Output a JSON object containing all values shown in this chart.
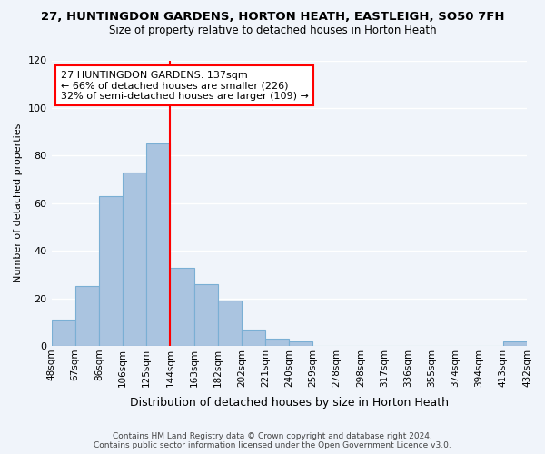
{
  "title": "27, HUNTINGDON GARDENS, HORTON HEATH, EASTLEIGH, SO50 7FH",
  "subtitle": "Size of property relative to detached houses in Horton Heath",
  "xlabel": "Distribution of detached houses by size in Horton Heath",
  "ylabel": "Number of detached properties",
  "bar_values": [
    11,
    25,
    63,
    73,
    85,
    33,
    26,
    19,
    7,
    3,
    2,
    0,
    0,
    0,
    0,
    0,
    0,
    0,
    0,
    2
  ],
  "bin_labels": [
    "48sqm",
    "67sqm",
    "86sqm",
    "106sqm",
    "125sqm",
    "144sqm",
    "163sqm",
    "182sqm",
    "202sqm",
    "221sqm",
    "240sqm",
    "259sqm",
    "278sqm",
    "298sqm",
    "317sqm",
    "336sqm",
    "355sqm",
    "374sqm",
    "394sqm",
    "413sqm",
    "432sqm"
  ],
  "bar_color": "#aac4e0",
  "bar_edge_color": "#7aafd4",
  "vline_bin_index": 5,
  "vline_color": "red",
  "annotation_text": "27 HUNTINGDON GARDENS: 137sqm\n← 66% of detached houses are smaller (226)\n32% of semi-detached houses are larger (109) →",
  "annotation_box_color": "white",
  "annotation_box_edge": "red",
  "ylim": [
    0,
    120
  ],
  "yticks": [
    0,
    20,
    40,
    60,
    80,
    100,
    120
  ],
  "footer_line1": "Contains HM Land Registry data © Crown copyright and database right 2024.",
  "footer_line2": "Contains public sector information licensed under the Open Government Licence v3.0.",
  "bg_color": "#f0f4fa",
  "grid_color": "white"
}
